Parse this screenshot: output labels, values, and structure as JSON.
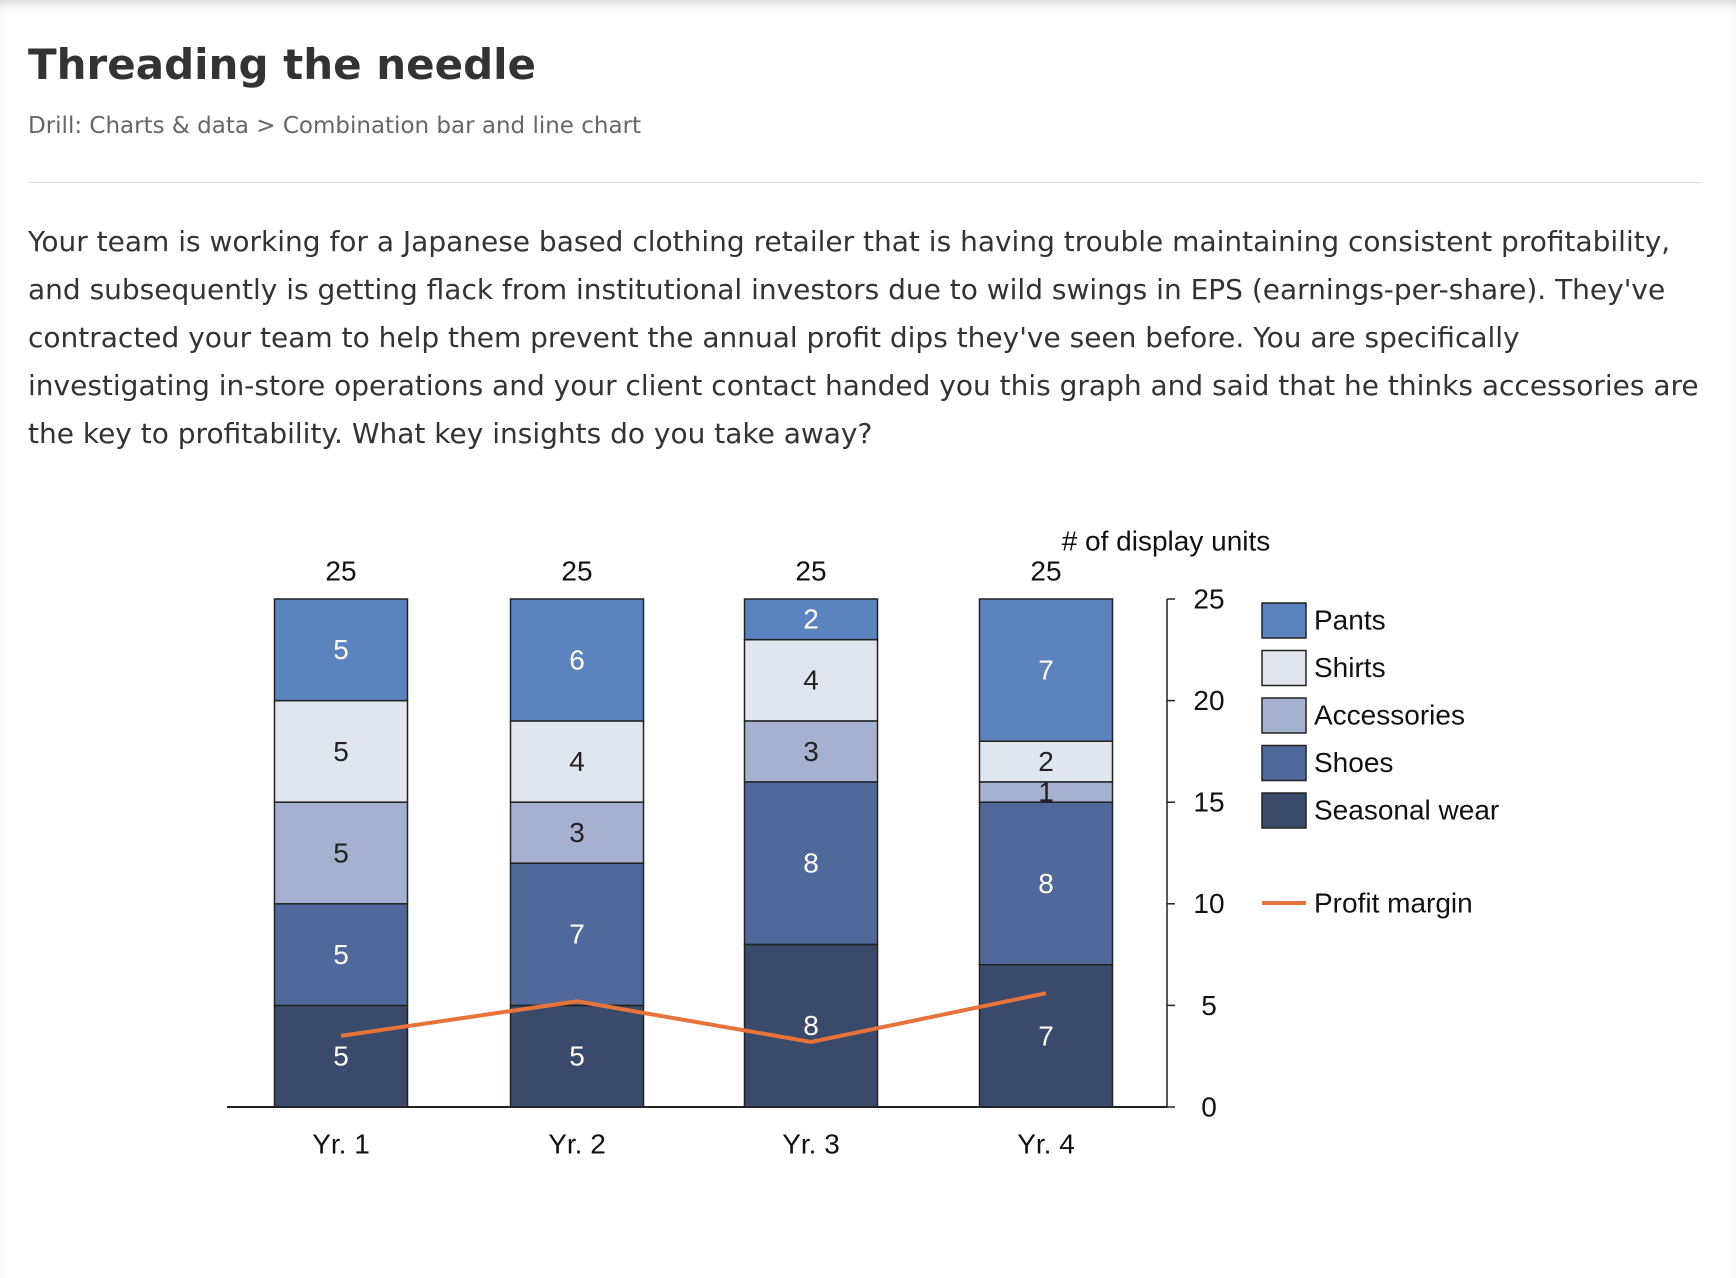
{
  "header": {
    "title": "Threading the needle",
    "breadcrumb": "Drill: Charts & data > Combination bar and line chart"
  },
  "prompt": "Your team is working for a Japanese based clothing retailer that is having trouble maintaining consistent profitability, and subsequently is getting flack from institutional investors due to wild swings in EPS (earnings-per-share). They've contracted your team to help them prevent the annual profit dips they've seen before. You are specifically investigating in-store operations and your client contact handed you this graph and said that he thinks accessories are the key to profitability. What key insights do you take away?",
  "chart_data": {
    "type": "bar",
    "stacked": true,
    "y_label": "# of display units",
    "categories": [
      "Yr. 1",
      "Yr. 2",
      "Yr. 3",
      "Yr. 4"
    ],
    "totals": [
      25,
      25,
      25,
      25
    ],
    "ylim": [
      0,
      25
    ],
    "yticks": [
      0,
      5,
      10,
      15,
      20,
      25
    ],
    "y_axis_side": "right",
    "grid": false,
    "legend": "right",
    "series": [
      {
        "name": "Pants",
        "color": "#5b84bf",
        "values": [
          5,
          6,
          2,
          7
        ]
      },
      {
        "name": "Shirts",
        "color": "#e1e5ee",
        "values": [
          5,
          4,
          4,
          2
        ]
      },
      {
        "name": "Accessories",
        "color": "#a4b2d0",
        "values": [
          5,
          3,
          3,
          1
        ]
      },
      {
        "name": "Shoes",
        "color": "#51699a",
        "values": [
          5,
          7,
          8,
          8
        ]
      },
      {
        "name": "Seasonal wear",
        "color": "#3a4a6a",
        "values": [
          5,
          5,
          8,
          7
        ]
      },
      {
        "name": "Profit margin",
        "type": "line",
        "color": "#e8733a",
        "values": [
          3.5,
          5.2,
          3.2,
          5.6
        ]
      }
    ]
  }
}
